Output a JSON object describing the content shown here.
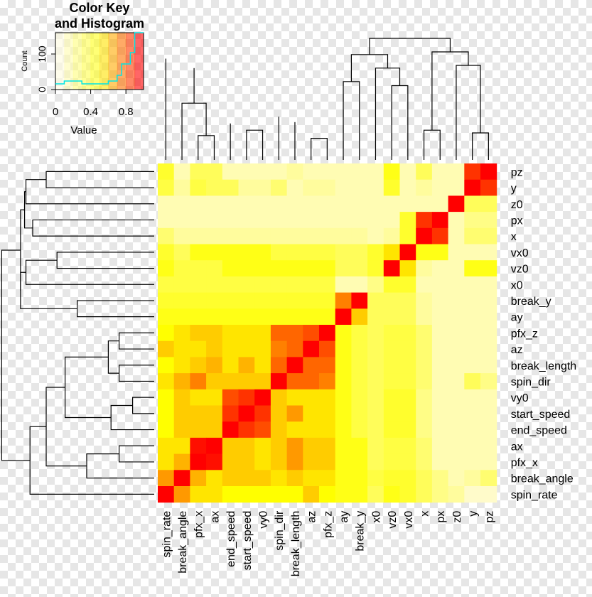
{
  "chart_data": {
    "type": "heatmap",
    "labels": [
      "spin_rate",
      "break_angle",
      "pfx_x",
      "ax",
      "end_speed",
      "start_speed",
      "vy0",
      "spin_dir",
      "break_length",
      "az",
      "pfx_z",
      "ay",
      "break_y",
      "x0",
      "vz0",
      "vx0",
      "x",
      "px",
      "z0",
      "y",
      "pz"
    ],
    "row_order_top_to_bottom": [
      "pz",
      "y",
      "z0",
      "px",
      "x",
      "vx0",
      "vz0",
      "x0",
      "break_y",
      "ay",
      "pfx_z",
      "az",
      "break_length",
      "spin_dir",
      "vy0",
      "start_speed",
      "end_speed",
      "ax",
      "pfx_x",
      "break_angle",
      "spin_rate"
    ],
    "matrix": [
      [
        1.0,
        0.7,
        0.55,
        0.55,
        0.5,
        0.5,
        0.5,
        0.5,
        0.5,
        0.6,
        0.5,
        0.45,
        0.45,
        0.3,
        0.45,
        0.4,
        0.3,
        0.2,
        0.15,
        0.05,
        0.05
      ],
      [
        0.7,
        1.0,
        0.65,
        0.55,
        0.6,
        0.6,
        0.6,
        0.55,
        0.6,
        0.55,
        0.55,
        0.45,
        0.45,
        0.35,
        0.4,
        0.4,
        0.3,
        0.2,
        0.1,
        0.15,
        0.25
      ],
      [
        0.55,
        0.65,
        1.0,
        0.97,
        0.6,
        0.6,
        0.55,
        0.6,
        0.7,
        0.6,
        0.6,
        0.45,
        0.45,
        0.3,
        0.35,
        0.35,
        0.25,
        0.1,
        0.1,
        0.1,
        0.1
      ],
      [
        0.55,
        0.55,
        0.97,
        1.0,
        0.6,
        0.6,
        0.55,
        0.6,
        0.7,
        0.6,
        0.6,
        0.45,
        0.45,
        0.3,
        0.35,
        0.35,
        0.25,
        0.1,
        0.1,
        0.1,
        0.1
      ],
      [
        0.5,
        0.6,
        0.6,
        0.6,
        1.0,
        0.9,
        0.85,
        0.6,
        0.55,
        0.55,
        0.55,
        0.45,
        0.35,
        0.3,
        0.4,
        0.4,
        0.2,
        0.1,
        0.1,
        0.1,
        0.1
      ],
      [
        0.5,
        0.6,
        0.6,
        0.6,
        0.9,
        1.0,
        0.9,
        0.6,
        0.7,
        0.55,
        0.55,
        0.45,
        0.35,
        0.3,
        0.4,
        0.4,
        0.2,
        0.1,
        0.1,
        0.1,
        0.1
      ],
      [
        0.5,
        0.6,
        0.55,
        0.55,
        0.85,
        0.9,
        1.0,
        0.6,
        0.55,
        0.55,
        0.55,
        0.45,
        0.35,
        0.3,
        0.4,
        0.4,
        0.2,
        0.1,
        0.1,
        0.1,
        0.1
      ],
      [
        0.55,
        0.65,
        0.75,
        0.6,
        0.6,
        0.6,
        0.6,
        1.0,
        0.8,
        0.8,
        0.75,
        0.45,
        0.35,
        0.3,
        0.35,
        0.35,
        0.25,
        0.1,
        0.1,
        0.3,
        0.2
      ],
      [
        0.5,
        0.55,
        0.6,
        0.65,
        0.55,
        0.65,
        0.55,
        0.8,
        1.0,
        0.8,
        0.8,
        0.45,
        0.35,
        0.3,
        0.35,
        0.35,
        0.25,
        0.1,
        0.1,
        0.1,
        0.1
      ],
      [
        0.6,
        0.55,
        0.55,
        0.6,
        0.55,
        0.55,
        0.55,
        0.75,
        0.8,
        1.0,
        0.85,
        0.45,
        0.35,
        0.3,
        0.35,
        0.35,
        0.25,
        0.1,
        0.1,
        0.1,
        0.1
      ],
      [
        0.5,
        0.55,
        0.6,
        0.6,
        0.55,
        0.55,
        0.55,
        0.8,
        0.8,
        0.85,
        1.0,
        0.45,
        0.35,
        0.3,
        0.35,
        0.35,
        0.25,
        0.1,
        0.1,
        0.1,
        0.1
      ],
      [
        0.45,
        0.45,
        0.45,
        0.45,
        0.45,
        0.45,
        0.45,
        0.45,
        0.45,
        0.45,
        0.45,
        1.0,
        0.6,
        0.3,
        0.3,
        0.3,
        0.15,
        0.1,
        0.1,
        0.1,
        0.1
      ],
      [
        0.4,
        0.4,
        0.4,
        0.4,
        0.4,
        0.4,
        0.4,
        0.4,
        0.4,
        0.4,
        0.4,
        0.75,
        1.0,
        0.3,
        0.3,
        0.3,
        0.15,
        0.1,
        0.1,
        0.1,
        0.1
      ],
      [
        0.35,
        0.35,
        0.35,
        0.35,
        0.35,
        0.35,
        0.35,
        0.35,
        0.35,
        0.35,
        0.35,
        0.1,
        0.1,
        0.2,
        0.4,
        0.4,
        0.1,
        0.1,
        0.1,
        0.1,
        0.1
      ],
      [
        0.45,
        0.35,
        0.35,
        0.35,
        0.45,
        0.45,
        0.45,
        0.45,
        0.45,
        0.45,
        0.45,
        0.3,
        0.3,
        0.4,
        1.0,
        0.55,
        0.15,
        0.1,
        0.1,
        0.45,
        0.45
      ],
      [
        0.4,
        0.3,
        0.45,
        0.45,
        0.45,
        0.45,
        0.45,
        0.35,
        0.35,
        0.35,
        0.35,
        0.3,
        0.3,
        0.4,
        0.55,
        1.0,
        0.45,
        0.45,
        0.1,
        0.1,
        0.1
      ],
      [
        0.25,
        0.15,
        0.15,
        0.15,
        0.15,
        0.15,
        0.15,
        0.15,
        0.15,
        0.15,
        0.15,
        0.15,
        0.15,
        0.1,
        0.15,
        0.4,
        1.0,
        0.9,
        0.1,
        0.25,
        0.25
      ],
      [
        0.1,
        0.1,
        0.1,
        0.1,
        0.1,
        0.1,
        0.1,
        0.1,
        0.1,
        0.1,
        0.1,
        0.1,
        0.1,
        0.1,
        0.1,
        0.4,
        0.9,
        1.0,
        0.1,
        0.2,
        0.2
      ],
      [
        0.1,
        0.1,
        0.1,
        0.1,
        0.1,
        0.1,
        0.1,
        0.1,
        0.1,
        0.1,
        0.1,
        0.1,
        0.1,
        0.1,
        0.1,
        0.1,
        0.1,
        0.1,
        1.0,
        0.3,
        0.3
      ],
      [
        0.35,
        0.15,
        0.35,
        0.3,
        0.3,
        0.15,
        0.15,
        0.25,
        0.1,
        0.15,
        0.15,
        0.1,
        0.1,
        0.1,
        0.4,
        0.1,
        0.15,
        0.1,
        0.1,
        1.0,
        0.9
      ],
      [
        0.4,
        0.1,
        0.3,
        0.3,
        0.1,
        0.1,
        0.1,
        0.1,
        0.15,
        0.1,
        0.1,
        0.1,
        0.1,
        0.1,
        0.45,
        0.1,
        0.3,
        0.1,
        0.1,
        0.9,
        1.0
      ]
    ],
    "color_key": {
      "title_line1": "Color Key",
      "title_line2": "and Histogram",
      "xlabel": "Value",
      "ylabel": "Count",
      "x_ticks": [
        "0",
        "0.4",
        "0.8"
      ],
      "x_tick_values": [
        0,
        0.4,
        0.8
      ],
      "y_ticks": [
        "0",
        "100"
      ],
      "y_tick_values": [
        0,
        100
      ],
      "ylim": [
        0,
        160
      ],
      "hist_color": "#00e5e5"
    },
    "colors": {
      "low": "#fffbe0",
      "mid": "#ffff00",
      "high": "#ff0000"
    }
  }
}
